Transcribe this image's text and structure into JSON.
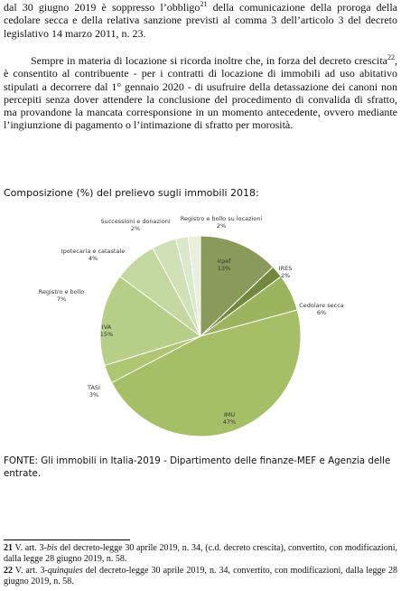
{
  "paragraph_1": [
    "dal 30 giugno 2019 è soppresso l’obbligo",
    "21",
    " della comunicazione della proroga della cedolare secca e della relativa sanzione previsti al comma 3 dell’articolo 3 del decreto legislativo 14 marzo 2011, n. 23."
  ],
  "paragraph_2": [
    "Sempre in materia di locazione si ricorda inoltre che, in forza del decreto crescita",
    "22",
    ", è consentito al contribuente - per i contratti di locazione di immobili ad uso abitativo stipulati a decorrere dal 1° gennaio 2020 - di usufruire della detassazione dei canoni non percepiti senza dover attendere la conclusione del procedimento di convalida di sfratto, ma provandone la mancata corresponsione in un momento antecedente, ovvero mediante l’ingiunzione di pagamento o l’intimazione di sfratto per morosità."
  ],
  "chart_caption": "Composizione (%) del prelievo sugli immobili 2018:",
  "chart_data": {
    "type": "pie",
    "categories": [
      "Irpef",
      "IRES",
      "Cedolare secca",
      "IMU",
      "TASI",
      "IVA",
      "Registro e bollo",
      "Ipotecaria e catastale",
      "Successioni e donazioni",
      "Registro e bollo su locazioni"
    ],
    "values": [
      13,
      2,
      6,
      47,
      3,
      15,
      7,
      4,
      2,
      2
    ],
    "value_labels": [
      "13%",
      "2%",
      "6%",
      "47%",
      "3%",
      "15%",
      "7%",
      "4%",
      "2%",
      "2%"
    ],
    "colors": [
      "#8a9a5b",
      "#71893f",
      "#9bb45e",
      "#a5bf66",
      "#acc671",
      "#b6cf86",
      "#c4d9a2",
      "#d0e1b7",
      "#dce8ca",
      "#e8efdd"
    ]
  },
  "source": "FONTE: Gli immobili in Italia-2019 - Dipartimento delle finanze-MEF e Agenzia delle entrate.",
  "footnotes": [
    [
      "21",
      " V. art. 3-",
      "bis",
      " del decreto-legge 30 aprile 2019, n. 34, (c.d. decreto crescita), convertito, con modificazioni, dalla legge 28 giugno 2019, n. 58."
    ],
    [
      "22",
      " V. art. 3-",
      "quinquies",
      " del decreto-legge 30 aprile 2019, n. 34, convertito, con modificazioni, dalla legge 28 giugno 2019, n. 58."
    ]
  ]
}
